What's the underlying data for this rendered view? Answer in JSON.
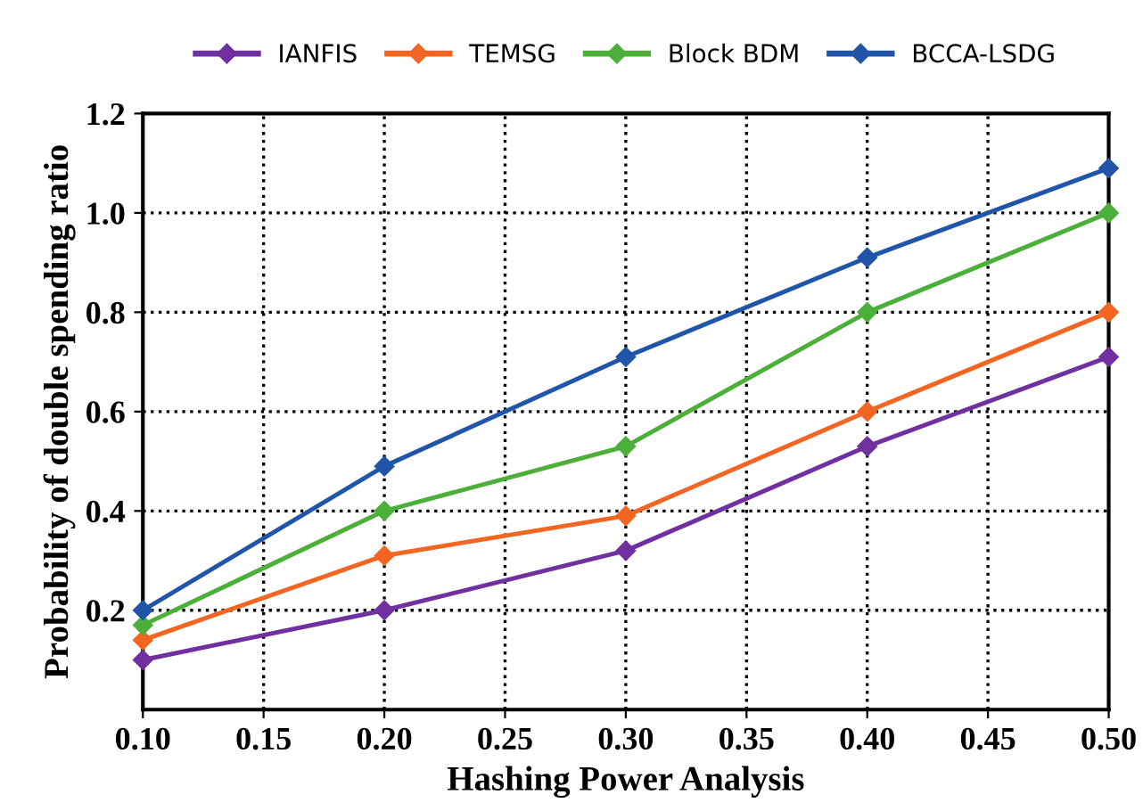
{
  "chart_data": {
    "type": "line",
    "xlabel": "Hashing Power Analysis",
    "ylabel": "Probability of double spending ratio",
    "x": [
      0.1,
      0.2,
      0.3,
      0.4,
      0.5
    ],
    "series": [
      {
        "name": "IANFIS",
        "color": "#7030a0",
        "values": [
          0.1,
          0.2,
          0.32,
          0.53,
          0.71
        ]
      },
      {
        "name": "TEMSG",
        "color": "#f26522",
        "values": [
          0.14,
          0.31,
          0.39,
          0.6,
          0.8
        ]
      },
      {
        "name": "Block BDM",
        "color": "#4caf3a",
        "values": [
          0.17,
          0.4,
          0.53,
          0.8,
          1.0
        ]
      },
      {
        "name": "BCCA-LSDG",
        "color": "#2155a8",
        "values": [
          0.2,
          0.49,
          0.71,
          0.91,
          1.09
        ]
      }
    ],
    "xlim": [
      0.1,
      0.5
    ],
    "xticks": [
      {
        "value": 0.1,
        "label": "0.10"
      },
      0.15,
      {
        "value": 0.2,
        "label": "0.20"
      },
      0.25,
      {
        "value": 0.3,
        "label": "0.30"
      },
      0.35,
      {
        "value": 0.4,
        "label": "0.40"
      },
      0.45,
      {
        "value": 0.5,
        "label": "0.50"
      }
    ],
    "ylim": [
      0,
      1.2
    ],
    "yticks": [
      0.2,
      0.4,
      0.6,
      0.8,
      {
        "value": 1.0,
        "label": "1.0"
      },
      1.2
    ],
    "grid": true,
    "legend": "top",
    "marker": "diamond",
    "line_style": "solid"
  }
}
